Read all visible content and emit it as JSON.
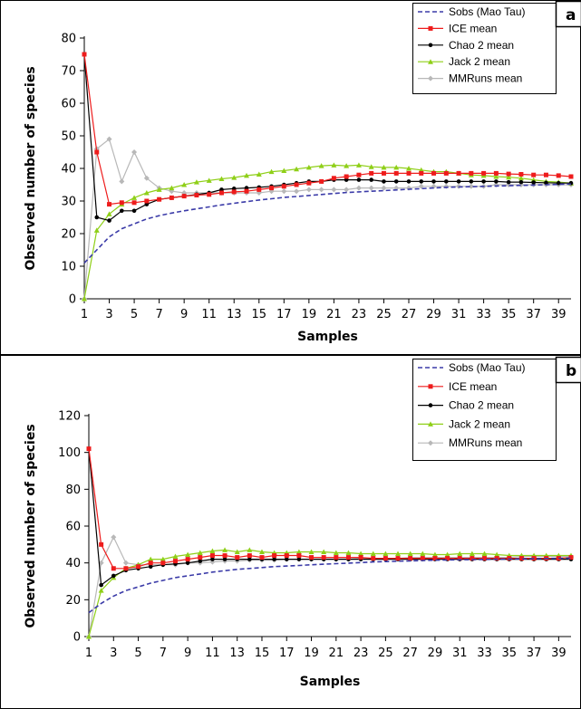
{
  "colors": {
    "sobs": "#3b3ba8",
    "ice": "#ee1c1c",
    "chao2": "#000000",
    "jack2": "#8fcf18",
    "mmruns": "#b8b8b8"
  },
  "chart_data": [
    {
      "type": "line",
      "panel_label": "a",
      "xlabel": "Samples",
      "ylabel": "Observed number of species",
      "xlim": [
        1,
        40
      ],
      "ylim": [
        0,
        80
      ],
      "yticks": [
        0,
        10,
        20,
        30,
        40,
        50,
        60,
        70,
        80
      ],
      "xticks": [
        1,
        3,
        5,
        7,
        9,
        11,
        13,
        15,
        17,
        19,
        21,
        23,
        25,
        27,
        29,
        31,
        33,
        35,
        37,
        39
      ],
      "x": [
        1,
        2,
        3,
        4,
        5,
        6,
        7,
        8,
        9,
        10,
        11,
        12,
        13,
        14,
        15,
        16,
        17,
        18,
        19,
        20,
        21,
        22,
        23,
        24,
        25,
        26,
        27,
        28,
        29,
        30,
        31,
        32,
        33,
        34,
        35,
        36,
        37,
        38,
        39,
        40
      ],
      "legend_position": "top-right",
      "series": [
        {
          "name": "Sobs (Mao Tau)",
          "key": "sobs",
          "marker": "none",
          "dashed": true,
          "values": [
            11,
            15,
            19,
            21.5,
            23,
            24.5,
            25.5,
            26.3,
            27,
            27.6,
            28.2,
            28.8,
            29.3,
            29.8,
            30.3,
            30.7,
            31.1,
            31.4,
            31.7,
            32,
            32.3,
            32.6,
            32.8,
            33,
            33.2,
            33.4,
            33.6,
            33.8,
            34,
            34.2,
            34.3,
            34.4,
            34.5,
            34.6,
            34.7,
            34.8,
            34.9,
            35,
            35.1,
            35.2
          ]
        },
        {
          "name": "ICE mean",
          "key": "ice",
          "marker": "square",
          "values": [
            75,
            45,
            29,
            29.5,
            29.5,
            30,
            30.5,
            31,
            31.5,
            31.8,
            32,
            32.5,
            32.8,
            33,
            33.5,
            34,
            34.5,
            35,
            35.5,
            36,
            37,
            37.5,
            38,
            38.5,
            38.5,
            38.5,
            38.5,
            38.5,
            38.5,
            38.5,
            38.5,
            38.5,
            38.5,
            38.5,
            38.3,
            38.2,
            38,
            38,
            37.8,
            37.5
          ]
        },
        {
          "name": "Chao 2 mean",
          "key": "chao2",
          "marker": "dot",
          "values": [
            75,
            25,
            24,
            27,
            27,
            29,
            30.5,
            31,
            31.5,
            32,
            32.5,
            33.5,
            33.8,
            34,
            34.2,
            34.5,
            35,
            35.5,
            36,
            36,
            36.5,
            36.5,
            36.5,
            36.5,
            36,
            36,
            36,
            36,
            36,
            36,
            36,
            36,
            36,
            36,
            35.8,
            35.8,
            35.7,
            35.6,
            35.5,
            35.5
          ]
        },
        {
          "name": "Jack 2 mean",
          "key": "jack2",
          "marker": "triangle",
          "values": [
            0,
            21,
            26,
            29,
            31,
            32.5,
            33.5,
            34,
            35,
            35.8,
            36.3,
            36.8,
            37.2,
            37.8,
            38.2,
            39,
            39.3,
            39.8,
            40.3,
            40.8,
            41,
            40.8,
            41,
            40.5,
            40.3,
            40.3,
            40,
            39.5,
            39,
            39,
            38.5,
            38,
            37.8,
            37.5,
            37.3,
            37,
            36.5,
            36,
            35.8,
            35.5
          ]
        },
        {
          "name": "MMRuns mean",
          "key": "mmruns",
          "marker": "diamond",
          "values": [
            0,
            46,
            49,
            36,
            45,
            37,
            34,
            33,
            32.5,
            32.5,
            32.5,
            32.5,
            32.5,
            32.5,
            32.5,
            33,
            33,
            33,
            33.5,
            33.5,
            33.5,
            33.5,
            34,
            34,
            34,
            34,
            34,
            34.5,
            34.5,
            34.5,
            34.5,
            34.5,
            34.5,
            35,
            35,
            35,
            35,
            35,
            35,
            35
          ]
        }
      ]
    },
    {
      "type": "line",
      "panel_label": "b",
      "xlabel": "Samples",
      "ylabel": "Observed number of species",
      "xlim": [
        1,
        40
      ],
      "ylim": [
        0,
        120
      ],
      "yticks": [
        0,
        20,
        40,
        60,
        80,
        100,
        120
      ],
      "xticks": [
        1,
        3,
        5,
        7,
        9,
        11,
        13,
        15,
        17,
        19,
        21,
        23,
        25,
        27,
        29,
        31,
        33,
        35,
        37,
        39
      ],
      "x": [
        1,
        2,
        3,
        4,
        5,
        6,
        7,
        8,
        9,
        10,
        11,
        12,
        13,
        14,
        15,
        16,
        17,
        18,
        19,
        20,
        21,
        22,
        23,
        24,
        25,
        26,
        27,
        28,
        29,
        30,
        31,
        32,
        33,
        34,
        35,
        36,
        37,
        38,
        39,
        40
      ],
      "legend_position": "top-right",
      "series": [
        {
          "name": "Sobs (Mao Tau)",
          "key": "sobs",
          "marker": "none",
          "dashed": true,
          "values": [
            13,
            18,
            22,
            25,
            27,
            29,
            30.5,
            32,
            33,
            34,
            35,
            35.8,
            36.5,
            37,
            37.5,
            38,
            38.3,
            38.6,
            39,
            39.3,
            39.6,
            39.9,
            40.2,
            40.5,
            40.7,
            40.9,
            41.1,
            41.3,
            41.5,
            41.6,
            41.7,
            41.8,
            41.9,
            42,
            42.1,
            42.2,
            42.3,
            42.4,
            42.5,
            42.6
          ]
        },
        {
          "name": "ICE mean",
          "key": "ice",
          "marker": "square",
          "values": [
            102,
            50,
            37,
            37,
            38,
            40,
            40,
            41,
            42,
            43,
            44,
            44,
            43,
            44,
            43,
            44,
            44,
            44,
            43,
            43,
            43,
            43,
            43,
            42.5,
            42.5,
            42.5,
            42.5,
            42.5,
            42.5,
            42.5,
            42.5,
            42.5,
            42.5,
            42.5,
            42.5,
            42.5,
            42.5,
            42.5,
            42.5,
            43
          ]
        },
        {
          "name": "Chao 2 mean",
          "key": "chao2",
          "marker": "dot",
          "values": [
            102,
            28,
            33,
            36,
            37,
            38,
            39,
            39.5,
            40,
            41,
            42,
            42,
            42,
            42,
            42,
            42,
            42,
            42,
            42,
            42,
            42,
            42,
            42,
            42,
            42,
            42,
            42,
            42,
            42,
            42,
            42,
            42,
            42,
            42,
            42,
            42,
            42,
            42,
            42,
            42
          ]
        },
        {
          "name": "Jack 2 mean",
          "key": "jack2",
          "marker": "triangle",
          "values": [
            0,
            25,
            32,
            37,
            39,
            42,
            42,
            43.5,
            44.5,
            45.5,
            46.5,
            47,
            46,
            47,
            46,
            45.5,
            45.5,
            46,
            46,
            46,
            45.5,
            45.5,
            45,
            45,
            45,
            45,
            45,
            45,
            44.5,
            44.5,
            45,
            45,
            45,
            44.5,
            44,
            44,
            44,
            44,
            44,
            44
          ]
        },
        {
          "name": "MMRuns mean",
          "key": "mmruns",
          "marker": "diamond",
          "values": [
            0,
            40,
            54,
            40,
            39,
            39,
            39,
            39,
            40,
            40,
            40.5,
            41,
            41,
            41.5,
            41.5,
            41.5,
            42,
            42,
            42,
            42,
            42,
            42,
            42.5,
            42.5,
            42.5,
            42.5,
            43,
            43,
            43,
            43,
            43,
            43,
            43,
            43,
            43,
            43.5,
            43.5,
            43.5,
            43.5,
            43.5
          ]
        }
      ]
    }
  ]
}
